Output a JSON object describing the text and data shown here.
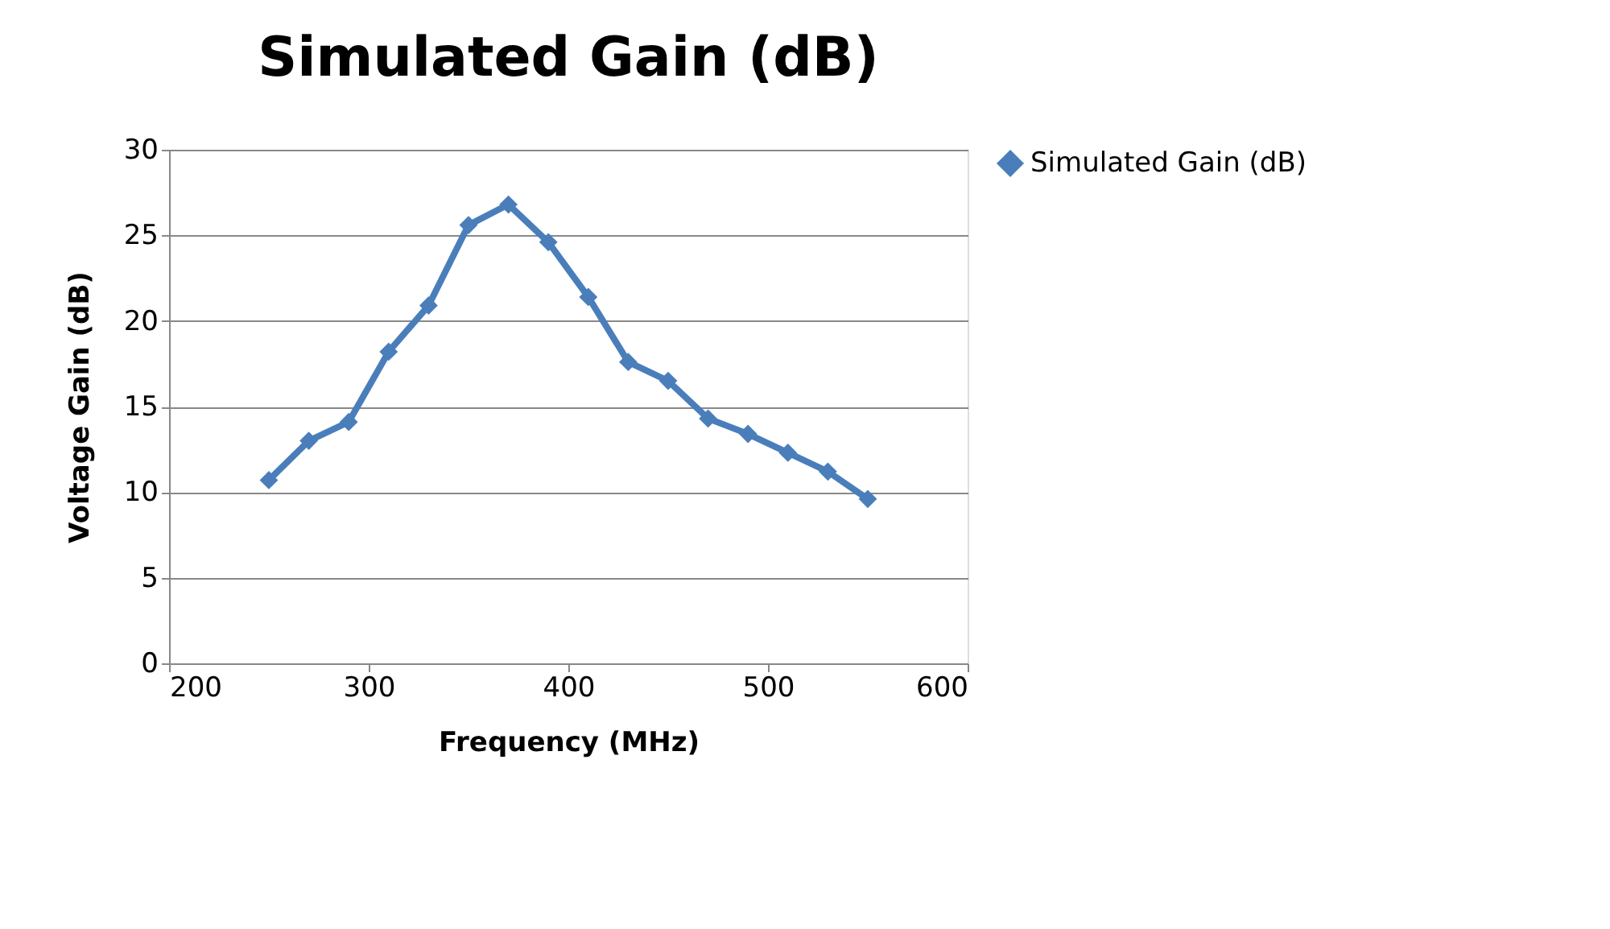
{
  "chart_data": {
    "type": "line",
    "title": "Simulated  Gain (dB)",
    "xlabel": "Frequency (MHz)",
    "ylabel": "Voltage Gain (dB)",
    "x": [
      250,
      270,
      290,
      310,
      330,
      350,
      370,
      390,
      410,
      430,
      450,
      470,
      490,
      510,
      530,
      550
    ],
    "series": [
      {
        "name": "Simulated  Gain (dB)",
        "color": "#4a7ebb",
        "values": [
          10.7,
          13.0,
          14.1,
          18.2,
          20.9,
          25.6,
          26.8,
          24.6,
          21.4,
          17.6,
          16.5,
          14.3,
          13.4,
          12.3,
          11.2,
          9.6
        ]
      }
    ],
    "xlim": [
      200,
      600
    ],
    "xticks": [
      200,
      300,
      400,
      500,
      600
    ],
    "ylim": [
      0,
      30
    ],
    "yticks": [
      0,
      5,
      10,
      15,
      20,
      25,
      30
    ],
    "grid": "y",
    "legend": "right",
    "marker": "diamond",
    "line_style": "solid"
  }
}
